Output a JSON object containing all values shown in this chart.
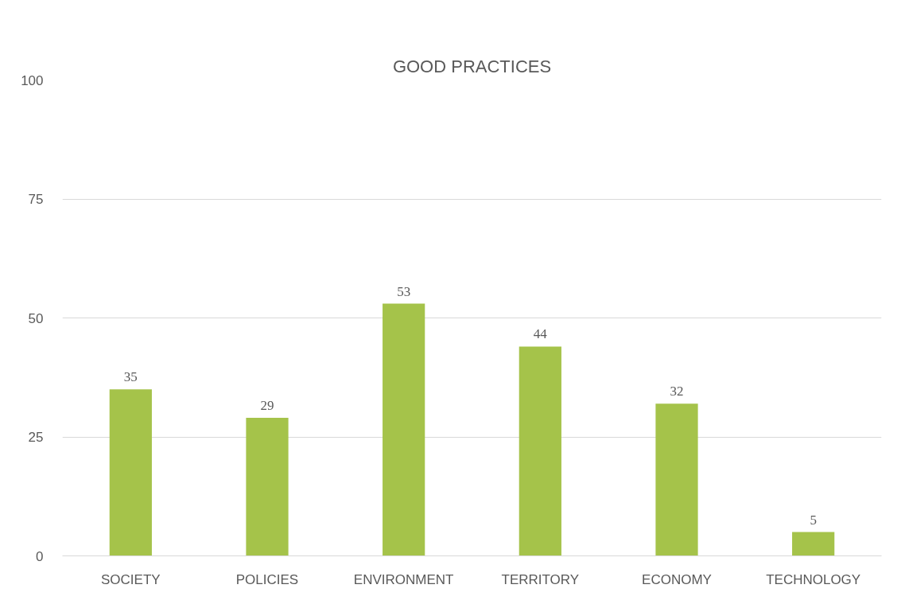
{
  "chart_data": {
    "type": "bar",
    "title": "GOOD PRACTICES",
    "categories": [
      "SOCIETY",
      "POLICIES",
      "ENVIRONMENT",
      "TERRITORY",
      "ECONOMY",
      "TECHNOLOGY"
    ],
    "values": [
      35,
      29,
      53,
      44,
      32,
      5
    ],
    "color": "#a5c34a",
    "ylim": [
      0,
      100
    ],
    "yticks": [
      0,
      25,
      50,
      75,
      100
    ],
    "grid": "y",
    "data_labels": true
  }
}
